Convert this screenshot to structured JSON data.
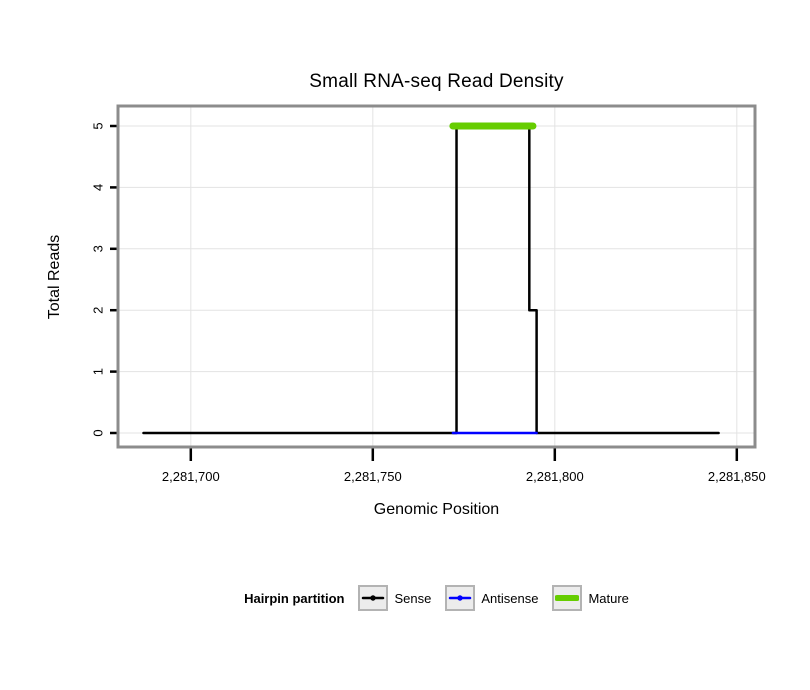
{
  "chart_data": {
    "type": "line",
    "title": "Small RNA-seq Read Density",
    "xlabel": "Genomic Position",
    "ylabel": "Total Reads",
    "xlim": [
      2281680,
      2281855
    ],
    "ylim": [
      0,
      5
    ],
    "x_ticks": [
      {
        "value": 2281700,
        "label": "2,281,700"
      },
      {
        "value": 2281750,
        "label": "2,281,750"
      },
      {
        "value": 2281800,
        "label": "2,281,800"
      },
      {
        "value": 2281850,
        "label": "2,281,850"
      }
    ],
    "y_ticks": [
      {
        "value": 0,
        "label": "0"
      },
      {
        "value": 1,
        "label": "1"
      },
      {
        "value": 2,
        "label": "2"
      },
      {
        "value": 3,
        "label": "3"
      },
      {
        "value": 4,
        "label": "4"
      },
      {
        "value": 5,
        "label": "5"
      }
    ],
    "grid": {
      "color": "#e3e3e3",
      "horizontal": [
        0,
        1,
        2,
        3,
        4,
        5
      ],
      "vertical": [
        2281700,
        2281750,
        2281800,
        2281850
      ]
    },
    "panel": {
      "border_color": "#8c8c8c",
      "tick_color": "#000000"
    },
    "legend": {
      "title": "Hairpin partition",
      "position": "bottom"
    },
    "series": [
      {
        "name": "Sense",
        "color": "#000000",
        "line_width": 2.5,
        "points": [
          [
            2281687,
            0
          ],
          [
            2281773,
            0
          ],
          [
            2281773,
            5
          ],
          [
            2281793,
            5
          ],
          [
            2281793,
            2
          ],
          [
            2281795,
            2
          ],
          [
            2281795,
            0
          ],
          [
            2281845,
            0
          ]
        ]
      },
      {
        "name": "Antisense",
        "color": "#0000ff",
        "line_width": 2.5,
        "points": [
          [
            2281772,
            0
          ],
          [
            2281795,
            0
          ]
        ]
      },
      {
        "name": "Mature",
        "color": "#66cd00",
        "line_width": 7,
        "points": [
          [
            2281772,
            5
          ],
          [
            2281794,
            5
          ]
        ]
      }
    ]
  }
}
